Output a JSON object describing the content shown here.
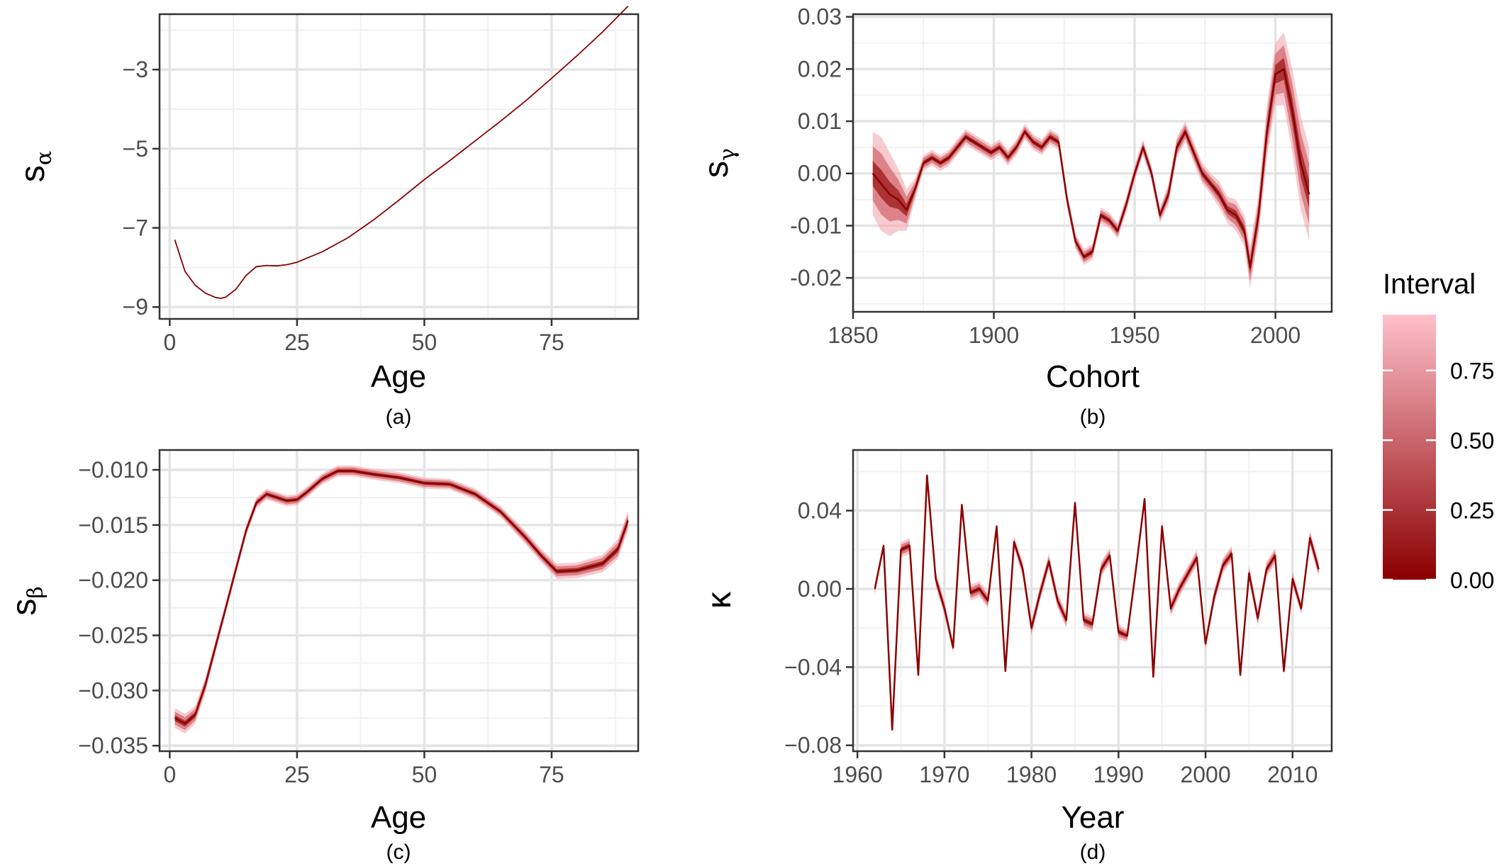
{
  "colors": {
    "line": "#8b0000",
    "grid_major": "#e4e4e4",
    "grid_minor": "#f1f1f1",
    "panel_border": "#333333",
    "band_outer": "#f0a0a8",
    "band_mid": "#d56a72",
    "band_inner": "#a52a2a"
  },
  "legend": {
    "title": "Interval",
    "tick_labels": [
      "0.75",
      "0.50",
      "0.25",
      "0.00"
    ],
    "tick_values": [
      0.75,
      0.5,
      0.25,
      0.0
    ],
    "range": [
      0,
      0.95
    ],
    "color_low": "#8b0000",
    "color_high": "#ffc0cb"
  },
  "chart_data": [
    {
      "id": "a",
      "type": "line",
      "caption": "(a)",
      "xlabel": "Age",
      "ylabel": "s",
      "ylabel_sub": "α",
      "xlim": [
        -2,
        92
      ],
      "ylim": [
        -9.3,
        -1.6
      ],
      "x_ticks": [
        0,
        25,
        50,
        75
      ],
      "x_tick_labels": [
        "0",
        "25",
        "50",
        "75"
      ],
      "y_ticks": [
        -3,
        -5,
        -7,
        -9
      ],
      "y_tick_labels": [
        "−3",
        "−5",
        "−7",
        "−9"
      ],
      "band": false,
      "x": [
        1,
        3,
        5,
        7,
        9,
        10,
        11,
        13,
        15,
        17,
        19,
        21,
        23,
        25,
        30,
        35,
        40,
        45,
        50,
        55,
        60,
        65,
        70,
        75,
        80,
        85,
        90
      ],
      "values": [
        -7.3,
        -8.1,
        -8.45,
        -8.65,
        -8.76,
        -8.78,
        -8.75,
        -8.55,
        -8.2,
        -7.98,
        -7.95,
        -7.96,
        -7.93,
        -7.87,
        -7.6,
        -7.25,
        -6.8,
        -6.3,
        -5.78,
        -5.3,
        -4.8,
        -4.3,
        -3.78,
        -3.22,
        -2.65,
        -2.05,
        -1.4
      ],
      "half_width": []
    },
    {
      "id": "b",
      "type": "line",
      "caption": "(b)",
      "xlabel": "Cohort",
      "ylabel": "s",
      "ylabel_sub": "γ",
      "xlim": [
        1850,
        2020
      ],
      "ylim": [
        -0.0265,
        0.0305
      ],
      "x_ticks": [
        1850,
        1900,
        1950,
        2000
      ],
      "x_tick_labels": [
        "1850",
        "1900",
        "1950",
        "2000"
      ],
      "y_ticks": [
        0.03,
        0.02,
        0.01,
        0.0,
        -0.01,
        -0.02
      ],
      "y_tick_labels": [
        "0.03",
        "0.02",
        "0.01",
        "0.00",
        "-0.01",
        "-0.02"
      ],
      "band": true,
      "x": [
        1857,
        1860,
        1863,
        1866,
        1869,
        1872,
        1875,
        1878,
        1881,
        1884,
        1887,
        1890,
        1893,
        1896,
        1899,
        1902,
        1905,
        1908,
        1911,
        1914,
        1917,
        1920,
        1923,
        1926,
        1929,
        1932,
        1935,
        1938,
        1941,
        1944,
        1947,
        1950,
        1953,
        1956,
        1959,
        1962,
        1965,
        1968,
        1971,
        1974,
        1977,
        1980,
        1983,
        1986,
        1989,
        1991,
        1994,
        1997,
        2000,
        2003,
        2006,
        2009,
        2012
      ],
      "values": [
        0.0,
        -0.002,
        -0.004,
        -0.005,
        -0.007,
        -0.003,
        0.002,
        0.003,
        0.002,
        0.003,
        0.005,
        0.007,
        0.006,
        0.005,
        0.004,
        0.005,
        0.003,
        0.005,
        0.008,
        0.006,
        0.005,
        0.007,
        0.006,
        -0.005,
        -0.013,
        -0.016,
        -0.015,
        -0.008,
        -0.009,
        -0.011,
        -0.006,
        0.0,
        0.005,
        0.0,
        -0.008,
        -0.004,
        0.005,
        0.008,
        0.004,
        0.0,
        -0.002,
        -0.004,
        -0.007,
        -0.008,
        -0.011,
        -0.018,
        -0.008,
        0.008,
        0.019,
        0.02,
        0.012,
        0.002,
        -0.004
      ],
      "half_width": [
        0.008,
        0.009,
        0.008,
        0.006,
        0.004,
        0.002,
        0.0015,
        0.0015,
        0.0015,
        0.0015,
        0.0015,
        0.0015,
        0.0015,
        0.0015,
        0.0015,
        0.0015,
        0.0015,
        0.0015,
        0.0015,
        0.0015,
        0.0015,
        0.0015,
        0.0015,
        0.0015,
        0.0015,
        0.0015,
        0.0015,
        0.0015,
        0.0015,
        0.0015,
        0.0015,
        0.0015,
        0.0015,
        0.0015,
        0.0015,
        0.002,
        0.002,
        0.002,
        0.002,
        0.002,
        0.002,
        0.0025,
        0.0025,
        0.003,
        0.003,
        0.004,
        0.004,
        0.005,
        0.006,
        0.007,
        0.008,
        0.009,
        0.009
      ]
    },
    {
      "id": "c",
      "type": "line",
      "caption": "(c)",
      "xlabel": "Age",
      "ylabel": "s",
      "ylabel_sub": "β",
      "xlim": [
        -2,
        92
      ],
      "ylim": [
        -0.0355,
        -0.0082
      ],
      "x_ticks": [
        0,
        25,
        50,
        75
      ],
      "x_tick_labels": [
        "0",
        "25",
        "50",
        "75"
      ],
      "y_ticks": [
        -0.01,
        -0.015,
        -0.02,
        -0.025,
        -0.03,
        -0.035
      ],
      "y_tick_labels": [
        "−0.010",
        "−0.015",
        "−0.020",
        "−0.025",
        "−0.030",
        "−0.035"
      ],
      "band": true,
      "x": [
        1,
        3,
        5,
        7,
        9,
        11,
        13,
        15,
        17,
        19,
        21,
        23,
        25,
        27,
        30,
        33,
        36,
        40,
        45,
        50,
        55,
        60,
        65,
        70,
        73,
        76,
        80,
        85,
        88,
        90
      ],
      "values": [
        -0.0325,
        -0.033,
        -0.0322,
        -0.0295,
        -0.026,
        -0.0225,
        -0.019,
        -0.0155,
        -0.013,
        -0.0122,
        -0.0125,
        -0.0128,
        -0.0127,
        -0.012,
        -0.0108,
        -0.0101,
        -0.0101,
        -0.0104,
        -0.0107,
        -0.0112,
        -0.0113,
        -0.0122,
        -0.0138,
        -0.0162,
        -0.0178,
        -0.0192,
        -0.0191,
        -0.0185,
        -0.0172,
        -0.0146
      ],
      "half_width": [
        0.0009,
        0.0009,
        0.0008,
        0.0007,
        0.0006,
        0.0005,
        0.0005,
        0.0005,
        0.0005,
        0.0005,
        0.0005,
        0.0005,
        0.0005,
        0.0005,
        0.0005,
        0.0005,
        0.0005,
        0.0005,
        0.0005,
        0.0005,
        0.0005,
        0.0005,
        0.0005,
        0.0006,
        0.0006,
        0.0007,
        0.0007,
        0.0008,
        0.0009,
        0.0009
      ]
    },
    {
      "id": "d",
      "type": "line",
      "caption": "(d)",
      "xlabel": "Year",
      "ylabel": "κ",
      "ylabel_sub": "",
      "xlim": [
        1959.5,
        2014.5
      ],
      "ylim": [
        -0.083,
        0.071
      ],
      "x_ticks": [
        1960,
        1970,
        1980,
        1990,
        2000,
        2010
      ],
      "x_tick_labels": [
        "1960",
        "1970",
        "1980",
        "1990",
        "2000",
        "2010"
      ],
      "y_ticks": [
        0.04,
        0.0,
        -0.04,
        -0.08
      ],
      "y_tick_labels": [
        "0.04",
        "0.00",
        "−0.04",
        "−0.08"
      ],
      "band": true,
      "x": [
        1962,
        1963,
        1964,
        1965,
        1966,
        1967,
        1968,
        1969,
        1970,
        1971,
        1972,
        1973,
        1974,
        1975,
        1976,
        1977,
        1978,
        1979,
        1980,
        1981,
        1982,
        1983,
        1984,
        1985,
        1986,
        1987,
        1988,
        1989,
        1990,
        1991,
        1992,
        1993,
        1994,
        1995,
        1996,
        1997,
        1998,
        1999,
        2000,
        2001,
        2002,
        2003,
        2004,
        2005,
        2006,
        2007,
        2008,
        2009,
        2010,
        2011,
        2012,
        2013
      ],
      "values": [
        0.0,
        0.022,
        -0.072,
        0.02,
        0.022,
        -0.044,
        0.058,
        0.005,
        -0.01,
        -0.03,
        0.043,
        -0.002,
        0.0,
        -0.006,
        0.032,
        -0.042,
        0.024,
        0.01,
        -0.02,
        -0.002,
        0.014,
        -0.006,
        -0.016,
        0.044,
        -0.016,
        -0.018,
        0.01,
        0.017,
        -0.022,
        -0.024,
        0.01,
        0.046,
        -0.045,
        0.032,
        -0.01,
        0.0,
        0.008,
        0.016,
        -0.028,
        -0.004,
        0.012,
        0.018,
        -0.044,
        0.008,
        -0.015,
        0.01,
        0.017,
        -0.042,
        0.005,
        -0.01,
        0.026,
        0.01
      ],
      "half_width": [
        0.003,
        0.002,
        0.001,
        0.004,
        0.004,
        0.001,
        0.001,
        0.004,
        0.004,
        0.003,
        0.001,
        0.004,
        0.004,
        0.004,
        0.001,
        0.001,
        0.003,
        0.004,
        0.004,
        0.004,
        0.004,
        0.004,
        0.004,
        0.001,
        0.004,
        0.004,
        0.004,
        0.004,
        0.004,
        0.003,
        0.004,
        0.001,
        0.001,
        0.003,
        0.004,
        0.004,
        0.004,
        0.004,
        0.003,
        0.004,
        0.004,
        0.004,
        0.002,
        0.004,
        0.004,
        0.004,
        0.004,
        0.002,
        0.004,
        0.003,
        0.004,
        0.004
      ]
    }
  ]
}
